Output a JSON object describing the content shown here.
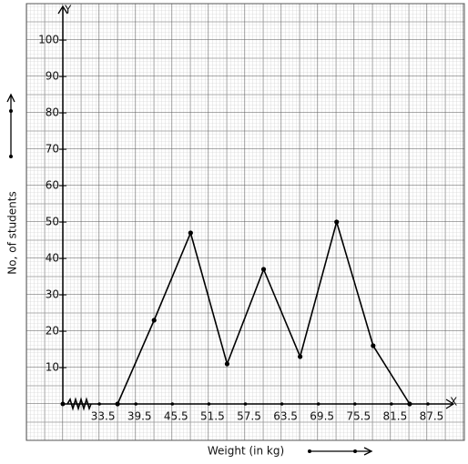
{
  "chart_data": {
    "type": "line",
    "x_label": "Weight (in kg)",
    "y_label": "No, of students",
    "x_axis_name": "X",
    "y_axis_name": "Y",
    "x": [
      36.5,
      42.5,
      48.5,
      54.5,
      60.5,
      66.5,
      72.5,
      78.5,
      84.5
    ],
    "series": [
      {
        "color": "#000000",
        "values": [
          0,
          23,
          47,
          11,
          37,
          13,
          50,
          16,
          0
        ]
      }
    ],
    "xlim": [
      27.5,
      90.5
    ],
    "ylim": [
      0,
      108.5
    ],
    "xticks": [
      33.5,
      39.5,
      45.5,
      51.5,
      57.5,
      63.5,
      69.5,
      75.5,
      81.5,
      87.5
    ],
    "yticks": [
      10,
      20,
      30,
      40,
      50,
      60,
      70,
      80,
      90,
      100
    ],
    "grid": true
  }
}
